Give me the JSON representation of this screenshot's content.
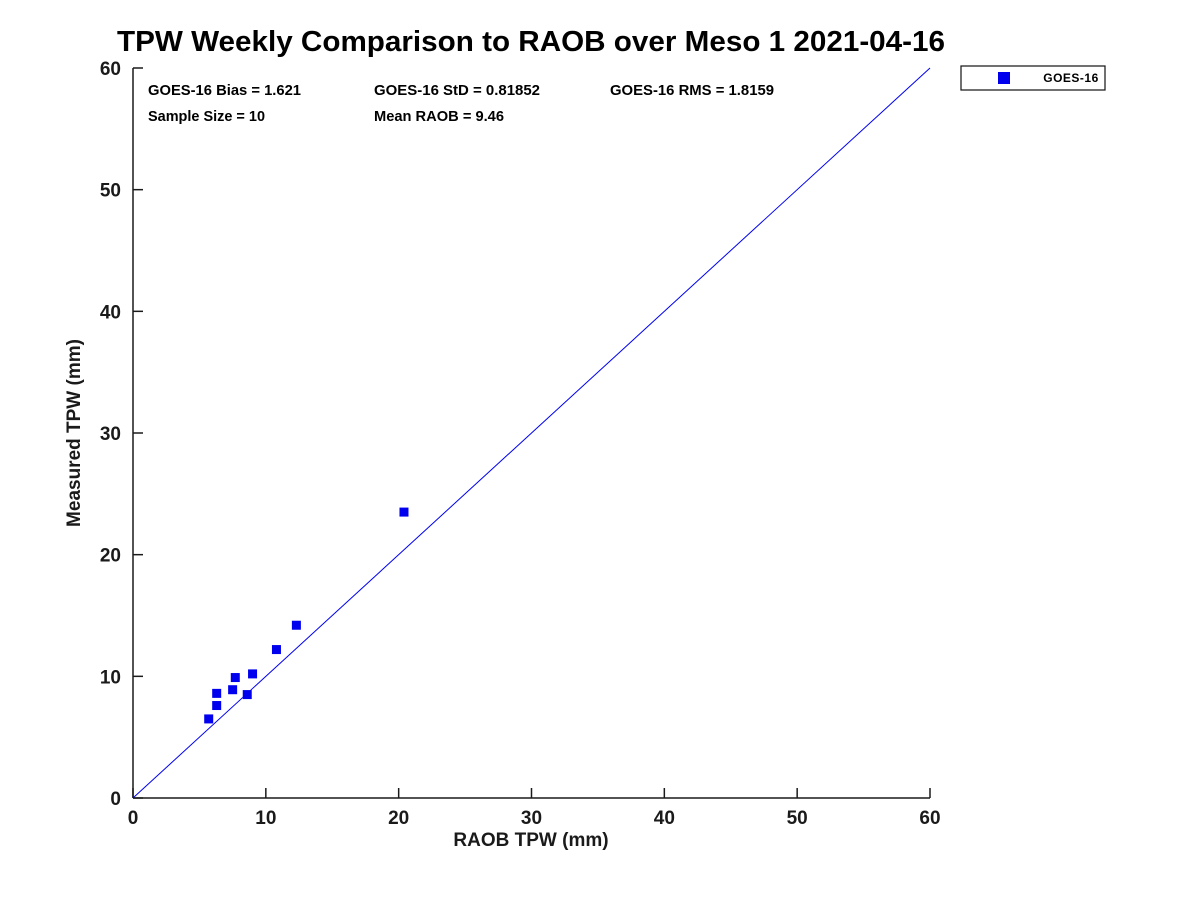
{
  "title": "TPW Weekly Comparison to RAOB over Meso 1 2021-04-16",
  "stats": {
    "bias": "GOES-16 Bias = 1.621",
    "std": "GOES-16 StD = 0.81852",
    "rms": "GOES-16 RMS = 1.8159",
    "sample_size": "Sample Size = 10",
    "mean_raob": "Mean RAOB = 9.46"
  },
  "legend": {
    "label": "GOES-16",
    "marker_color": "#0000ee"
  },
  "colors": {
    "accent": "#0000ee",
    "axis": "#1a1a1a",
    "background": "#ffffff"
  },
  "chart_data": {
    "type": "scatter",
    "title": "TPW Weekly Comparison to RAOB over Meso 1 2021-04-16",
    "xlabel": "RAOB TPW (mm)",
    "ylabel": "Measured TPW (mm)",
    "xlim": [
      0,
      60
    ],
    "ylim": [
      0,
      60
    ],
    "x_ticks": [
      0,
      10,
      20,
      30,
      40,
      50,
      60
    ],
    "y_ticks": [
      0,
      10,
      20,
      30,
      40,
      50,
      60
    ],
    "grid": false,
    "legend_position": "top-right-outside",
    "series": [
      {
        "name": "GOES-16",
        "marker": "square",
        "color": "#0000ee",
        "points": [
          [
            5.7,
            6.5
          ],
          [
            6.3,
            7.6
          ],
          [
            6.3,
            8.6
          ],
          [
            7.5,
            8.9
          ],
          [
            7.7,
            9.9
          ],
          [
            8.6,
            8.5
          ],
          [
            9.0,
            10.2
          ],
          [
            10.8,
            12.2
          ],
          [
            12.3,
            14.2
          ],
          [
            20.4,
            23.5
          ]
        ]
      }
    ],
    "reference_line": {
      "name": "identity-line",
      "from": [
        0,
        0
      ],
      "to": [
        60,
        60
      ],
      "color": "#0000ee"
    }
  }
}
